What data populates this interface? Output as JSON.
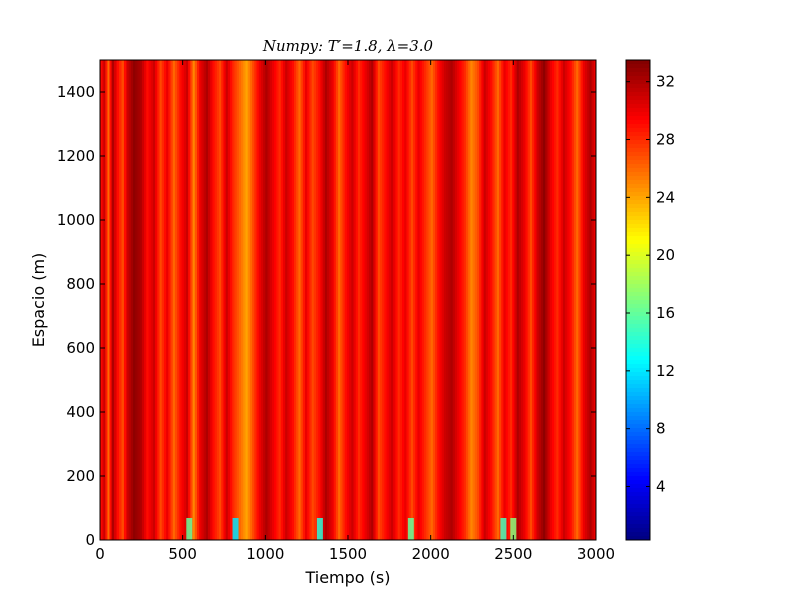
{
  "chart_data": {
    "type": "heatmap",
    "title": "Numpy: T′=1.8, λ=3.0",
    "xlabel": "Tiempo (s)",
    "ylabel": "Espacio (m)",
    "xlim": [
      0,
      3000
    ],
    "ylim": [
      0,
      1500
    ],
    "xticks": [
      0,
      500,
      1000,
      1500,
      2000,
      2500,
      3000
    ],
    "yticks": [
      0,
      200,
      400,
      600,
      800,
      1000,
      1200,
      1400
    ],
    "colorbar": {
      "colormap": "jet",
      "range": [
        0.3,
        33.5
      ],
      "ticks": [
        4,
        8,
        12,
        16,
        20,
        24,
        28,
        32
      ]
    },
    "field_description": "vertical bands varying along Tiempo; values mostly 26-33, yellow bands ~22-24, low values (10-16) only near Espacio=0",
    "bands": [
      {
        "t": 0,
        "v": 29
      },
      {
        "t": 20,
        "v": 31
      },
      {
        "t": 45,
        "v": 26
      },
      {
        "t": 70,
        "v": 32
      },
      {
        "t": 100,
        "v": 29
      },
      {
        "t": 130,
        "v": 27
      },
      {
        "t": 160,
        "v": 31
      },
      {
        "t": 200,
        "v": 33
      },
      {
        "t": 240,
        "v": 32
      },
      {
        "t": 280,
        "v": 29
      },
      {
        "t": 320,
        "v": 31
      },
      {
        "t": 360,
        "v": 27
      },
      {
        "t": 400,
        "v": 30
      },
      {
        "t": 440,
        "v": 26
      },
      {
        "t": 480,
        "v": 29
      },
      {
        "t": 520,
        "v": 31
      },
      {
        "t": 560,
        "v": 25
      },
      {
        "t": 600,
        "v": 30
      },
      {
        "t": 640,
        "v": 32
      },
      {
        "t": 680,
        "v": 29
      },
      {
        "t": 720,
        "v": 27
      },
      {
        "t": 760,
        "v": 31
      },
      {
        "t": 800,
        "v": 28
      },
      {
        "t": 840,
        "v": 26
      },
      {
        "t": 880,
        "v": 24
      },
      {
        "t": 920,
        "v": 27
      },
      {
        "t": 960,
        "v": 30
      },
      {
        "t": 1000,
        "v": 32
      },
      {
        "t": 1040,
        "v": 30
      },
      {
        "t": 1080,
        "v": 28
      },
      {
        "t": 1120,
        "v": 31
      },
      {
        "t": 1160,
        "v": 29
      },
      {
        "t": 1200,
        "v": 26
      },
      {
        "t": 1240,
        "v": 30
      },
      {
        "t": 1280,
        "v": 27
      },
      {
        "t": 1320,
        "v": 29
      },
      {
        "t": 1360,
        "v": 32
      },
      {
        "t": 1400,
        "v": 30
      },
      {
        "t": 1440,
        "v": 26
      },
      {
        "t": 1480,
        "v": 29
      },
      {
        "t": 1520,
        "v": 31
      },
      {
        "t": 1560,
        "v": 28
      },
      {
        "t": 1600,
        "v": 30
      },
      {
        "t": 1640,
        "v": 32
      },
      {
        "t": 1680,
        "v": 27
      },
      {
        "t": 1720,
        "v": 29
      },
      {
        "t": 1760,
        "v": 31
      },
      {
        "t": 1800,
        "v": 28
      },
      {
        "t": 1840,
        "v": 30
      },
      {
        "t": 1880,
        "v": 27
      },
      {
        "t": 1920,
        "v": 30
      },
      {
        "t": 1960,
        "v": 28
      },
      {
        "t": 2000,
        "v": 26
      },
      {
        "t": 2040,
        "v": 29
      },
      {
        "t": 2080,
        "v": 31
      },
      {
        "t": 2120,
        "v": 32
      },
      {
        "t": 2160,
        "v": 30
      },
      {
        "t": 2200,
        "v": 28
      },
      {
        "t": 2240,
        "v": 25
      },
      {
        "t": 2280,
        "v": 27
      },
      {
        "t": 2320,
        "v": 31
      },
      {
        "t": 2360,
        "v": 29
      },
      {
        "t": 2400,
        "v": 26
      },
      {
        "t": 2440,
        "v": 30
      },
      {
        "t": 2480,
        "v": 28
      },
      {
        "t": 2520,
        "v": 32
      },
      {
        "t": 2560,
        "v": 30
      },
      {
        "t": 2600,
        "v": 27
      },
      {
        "t": 2640,
        "v": 31
      },
      {
        "t": 2680,
        "v": 33
      },
      {
        "t": 2720,
        "v": 30
      },
      {
        "t": 2760,
        "v": 28
      },
      {
        "t": 2800,
        "v": 31
      },
      {
        "t": 2840,
        "v": 29
      },
      {
        "t": 2880,
        "v": 26
      },
      {
        "t": 2920,
        "v": 30
      },
      {
        "t": 2960,
        "v": 32
      },
      {
        "t": 3000,
        "v": 29
      }
    ],
    "low_spots_near_zero": [
      {
        "t": 540,
        "v": 16
      },
      {
        "t": 820,
        "v": 12
      },
      {
        "t": 1330,
        "v": 14
      },
      {
        "t": 1880,
        "v": 16
      },
      {
        "t": 2440,
        "v": 15
      },
      {
        "t": 2500,
        "v": 17
      }
    ]
  }
}
